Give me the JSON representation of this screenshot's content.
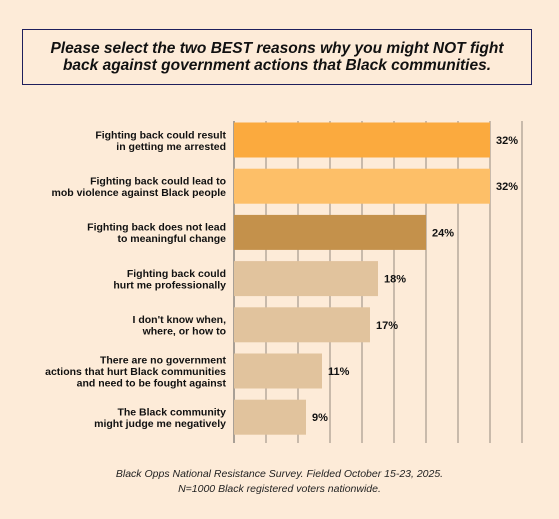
{
  "title": "Please select the two BEST reasons why you might NOT fight\nback against government actions that Black communities.",
  "source": {
    "line1": "Black Opps National Resistance Survey. Fielded October 15-23, 2025.",
    "line2": "N=1000 Black registered voters nationwide."
  },
  "chart_data": {
    "type": "bar",
    "orientation": "horizontal",
    "title": "Please select the two BEST reasons why you might NOT fight back against government actions that Black communities.",
    "xlim": [
      0,
      36
    ],
    "grid": true,
    "categories": [
      "Fighting back could result\nin getting me arrested",
      "Fighting back could lead to\nmob violence against Black people",
      "Fighting back does not lead\nto meaningful change",
      "Fighting back could\nhurt me professionally",
      "I don't know when,\nwhere, or how to",
      "There are no government\nactions that hurt Black communities\nand need to be fought against",
      "The Black community\nmight judge me negatively"
    ],
    "values": [
      32,
      32,
      24,
      18,
      17,
      11,
      9
    ],
    "value_labels": [
      "32%",
      "32%",
      "24%",
      "18%",
      "17%",
      "11%",
      "9%"
    ],
    "colors": [
      "#fbaa3e",
      "#fdbf68",
      "#c4914b",
      "#e1c39d",
      "#e1c39d",
      "#e1c39d",
      "#e1c39d"
    ]
  }
}
